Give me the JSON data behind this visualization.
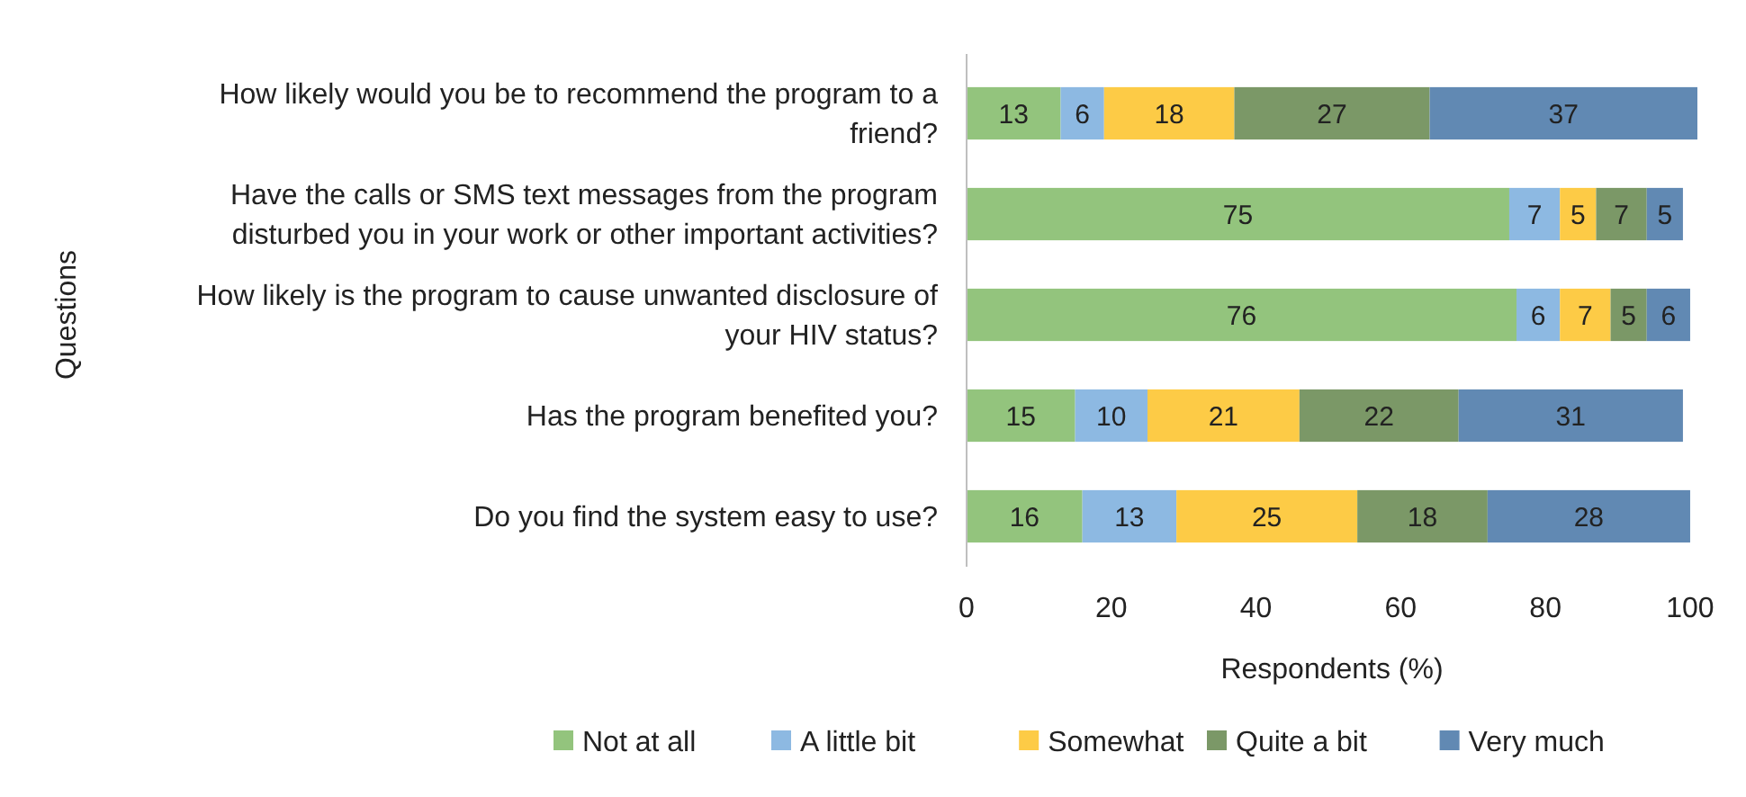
{
  "chart_data": {
    "type": "bar",
    "orientation": "horizontal",
    "stacked": true,
    "data_labels": true,
    "legend": "bottom",
    "grid": false,
    "categories": [
      "How likely would you be to recommend the program to a friend?",
      "Have the calls or SMS text messages from the program disturbed you in your work or other important activities?",
      "How likely is the program to cause unwanted disclosure of your HIV status?",
      "Has the program benefited you?",
      "Do you find the system easy to use?"
    ],
    "xlabel": "Respondents (%)",
    "ylabel": "Questions",
    "xlim": [
      0,
      101
    ],
    "xticks": [
      0,
      20,
      40,
      60,
      80,
      100
    ],
    "series": [
      {
        "name": "Not at all",
        "color": "#93c47d",
        "values": [
          13,
          75,
          76,
          15,
          16
        ]
      },
      {
        "name": "A little bit",
        "color": "#8db9e2",
        "values": [
          6,
          7,
          6,
          10,
          13
        ]
      },
      {
        "name": "Somewhat",
        "color": "#fdcb46",
        "values": [
          18,
          5,
          7,
          21,
          25
        ]
      },
      {
        "name": "Quite a bit",
        "color": "#7b9867",
        "values": [
          27,
          7,
          5,
          22,
          18
        ]
      },
      {
        "name": "Very much",
        "color": "#6189b3",
        "values": [
          37,
          5,
          6,
          31,
          28
        ]
      }
    ]
  }
}
